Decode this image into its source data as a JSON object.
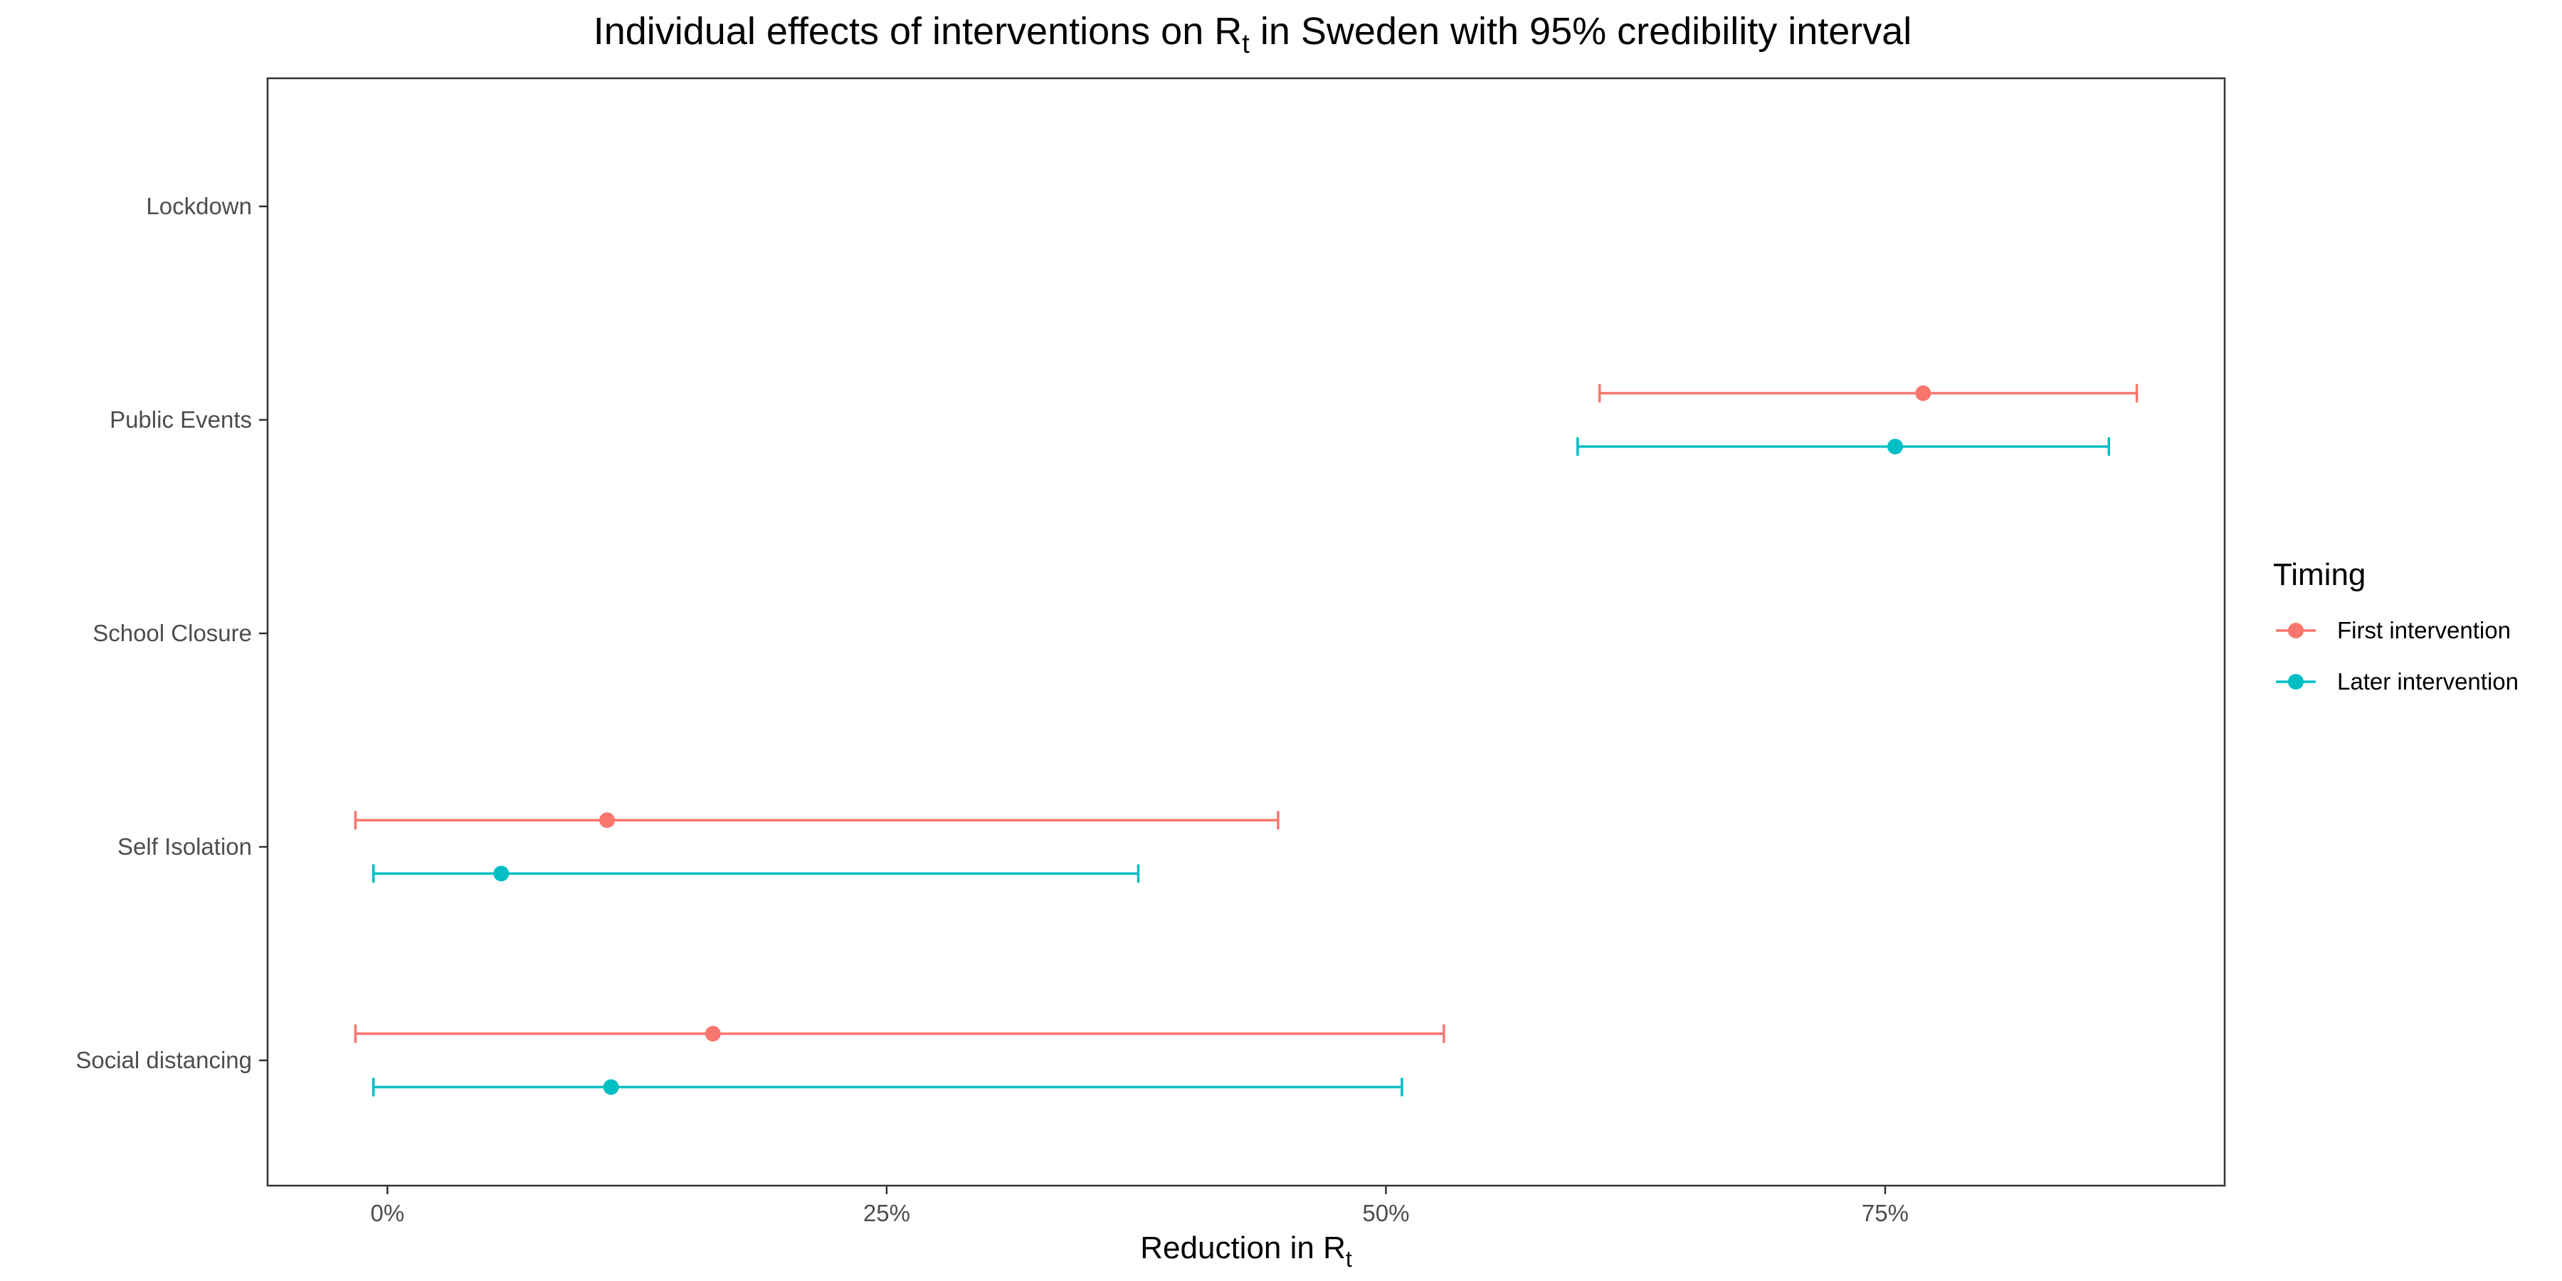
{
  "chart_data": {
    "type": "scatter",
    "title": {
      "prefix": "Individual effects of interventions on ",
      "var_main": "R",
      "var_sub": "t",
      "middle": " in ",
      "country": "Sweden",
      "suffix": " with 95% credibility interval"
    },
    "xlabel": {
      "main": "Reduction in R",
      "sub": "t"
    },
    "ylabel": "",
    "xlim": [
      -6,
      92
    ],
    "x_ticks": [
      {
        "value": 0,
        "label": "0%"
      },
      {
        "value": 25,
        "label": "25%"
      },
      {
        "value": 50,
        "label": "50%"
      },
      {
        "value": 75,
        "label": "75%"
      }
    ],
    "categories": [
      "Lockdown",
      "Public Events",
      "School Closure",
      "Self Isolation",
      "Social distancing"
    ],
    "legend": {
      "title": "Timing",
      "placement": "right",
      "entries": [
        "First intervention",
        "Later intervention"
      ]
    },
    "series": [
      {
        "name": "First intervention",
        "color": "#F8766D",
        "points": [
          {
            "category": "Public Events",
            "mean": 76.9,
            "lower": 60.7,
            "upper": 87.6
          },
          {
            "category": "Self Isolation",
            "mean": 11.0,
            "lower": -1.6,
            "upper": 44.6
          },
          {
            "category": "Social distancing",
            "mean": 16.3,
            "lower": -1.6,
            "upper": 52.9
          }
        ]
      },
      {
        "name": "Later intervention",
        "color": "#00BFC4",
        "points": [
          {
            "category": "Public Events",
            "mean": 75.5,
            "lower": 59.6,
            "upper": 86.2
          },
          {
            "category": "Self Isolation",
            "mean": 5.7,
            "lower": -0.7,
            "upper": 37.6
          },
          {
            "category": "Social distancing",
            "mean": 11.2,
            "lower": -0.7,
            "upper": 50.8
          }
        ]
      }
    ],
    "grid": false
  }
}
